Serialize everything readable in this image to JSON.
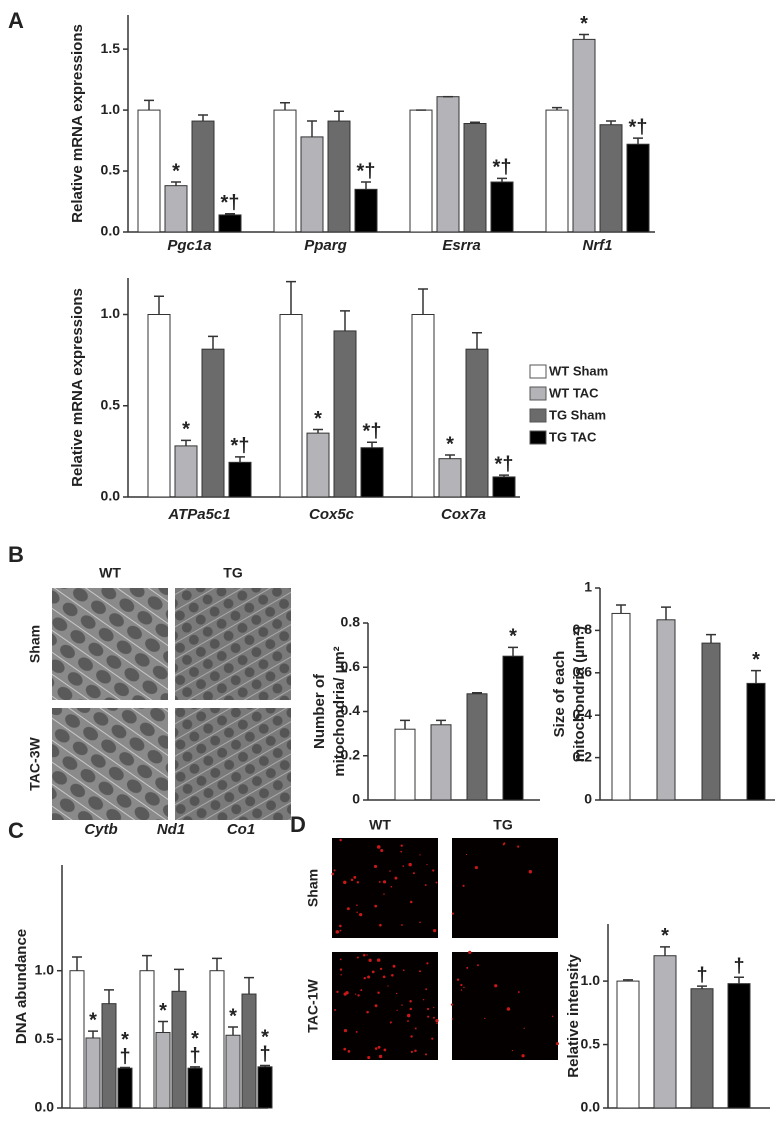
{
  "panels": [
    "A",
    "B",
    "C",
    "D"
  ],
  "legend": [
    {
      "name": "WT Sham",
      "color": "#ffffff"
    },
    {
      "name": "WT TAC",
      "color": "#b4b4b8"
    },
    {
      "name": "TG Sham",
      "color": "#6b6b6b"
    },
    {
      "name": "TG TAC",
      "color": "#000000"
    }
  ],
  "images": {
    "B": {
      "columns": [
        "WT",
        "TG"
      ],
      "rows": [
        "Sham",
        "TAC-3W"
      ]
    },
    "D": {
      "columns": [
        "WT",
        "TG"
      ],
      "rows": [
        "Sham",
        "TAC-1W"
      ]
    }
  },
  "chart_data": [
    {
      "type": "bar",
      "y_label": [
        "Relative mRNA expressions"
      ],
      "categories": [
        "Pgc1a",
        "Pparg",
        "Esrra",
        "Nrf1"
      ],
      "ylim": [
        0,
        1.78
      ],
      "yticks": [
        {
          "value": 0,
          "label": "0.0"
        },
        0.5,
        {
          "value": 1,
          "label": "1.0"
        },
        1.5
      ],
      "series": [
        {
          "values": [
            1.0,
            1.0,
            1.0,
            1.0
          ],
          "errors": [
            0.08,
            0.06,
            0,
            0.02
          ],
          "annotations": [
            null,
            null,
            null,
            null
          ]
        },
        {
          "values": [
            0.38,
            0.78,
            1.11,
            1.58
          ],
          "errors": [
            0.03,
            0.13,
            0,
            0.04
          ],
          "annotations": [
            "*",
            null,
            null,
            "*"
          ]
        },
        {
          "values": [
            0.91,
            0.91,
            0.89,
            0.88
          ],
          "errors": [
            0.05,
            0.08,
            0.01,
            0.03
          ],
          "annotations": [
            null,
            null,
            null,
            null
          ]
        },
        {
          "values": [
            0.14,
            0.35,
            0.41,
            0.72
          ],
          "errors": [
            0.01,
            0.06,
            0.03,
            0.05
          ],
          "annotations": [
            "*†",
            "*†",
            "*†",
            "*†"
          ]
        }
      ]
    },
    {
      "type": "bar",
      "y_label": [
        "Relative mRNA expressions"
      ],
      "categories": [
        "ATPa5c1",
        "Cox5c",
        "Cox7a"
      ],
      "ylim": [
        0,
        1.2
      ],
      "yticks": [
        {
          "value": 0,
          "label": "0.0"
        },
        0.5,
        {
          "value": 1,
          "label": "1.0"
        }
      ],
      "series": [
        {
          "values": [
            1.0,
            1.0,
            1.0
          ],
          "errors": [
            0.1,
            0.18,
            0.14
          ],
          "annotations": [
            null,
            null,
            null
          ]
        },
        {
          "values": [
            0.28,
            0.35,
            0.21
          ],
          "errors": [
            0.03,
            0.02,
            0.02
          ],
          "annotations": [
            "*",
            "*",
            "*"
          ]
        },
        {
          "values": [
            0.81,
            0.91,
            0.81
          ],
          "errors": [
            0.07,
            0.11,
            0.09
          ],
          "annotations": [
            null,
            null,
            null
          ]
        },
        {
          "values": [
            0.19,
            0.27,
            0.11
          ],
          "errors": [
            0.03,
            0.03,
            0.01
          ],
          "annotations": [
            "*†",
            "*†",
            "*†"
          ]
        }
      ]
    },
    {
      "type": "bar",
      "y_label": [
        "Number of",
        "mitochondria/ µm²"
      ],
      "ylim": [
        0,
        0.8
      ],
      "yticks": [
        0,
        0.2,
        0.4,
        0.6,
        0.8
      ],
      "values": [
        0.32,
        0.34,
        0.48,
        0.65
      ],
      "errors": [
        0.04,
        0.02,
        0.005,
        0.04
      ],
      "annotations": [
        null,
        null,
        null,
        "*"
      ]
    },
    {
      "type": "bar",
      "y_label": [
        "Size of each",
        "mitochondria (µm²)"
      ],
      "ylim": [
        0,
        1
      ],
      "yticks": [
        0,
        0.2,
        0.4,
        0.6,
        0.8,
        1
      ],
      "values": [
        0.88,
        0.85,
        0.74,
        0.55
      ],
      "errors": [
        0.04,
        0.06,
        0.04,
        0.06
      ],
      "annotations": [
        null,
        null,
        null,
        "*"
      ]
    },
    {
      "type": "bar",
      "y_label": [
        "DNA abundance"
      ],
      "categories": [
        "Cytb",
        "Nd1",
        "Co1"
      ],
      "ylim": [
        0,
        1.77
      ],
      "yticks": [
        {
          "value": 0,
          "label": "0.0"
        },
        0.5,
        {
          "value": 1,
          "label": "1.0"
        }
      ],
      "series": [
        {
          "values": [
            1.0,
            1.0,
            1.0
          ],
          "errors": [
            0.1,
            0.11,
            0.09
          ],
          "annotations": [
            null,
            null,
            null
          ]
        },
        {
          "values": [
            0.51,
            0.55,
            0.53
          ],
          "errors": [
            0.05,
            0.08,
            0.06
          ],
          "annotations": [
            [
              "*"
            ],
            [
              "*"
            ],
            [
              "*"
            ]
          ]
        },
        {
          "values": [
            0.76,
            0.85,
            0.83
          ],
          "errors": [
            0.1,
            0.16,
            0.12
          ],
          "annotations": [
            null,
            null,
            null
          ]
        },
        {
          "values": [
            0.29,
            0.29,
            0.3
          ],
          "errors": [
            0.005,
            0.01,
            0.01
          ],
          "annotations": [
            [
              "*",
              "†"
            ],
            [
              "*",
              "†"
            ],
            [
              "*",
              "†"
            ]
          ]
        }
      ]
    },
    {
      "type": "bar",
      "y_label": [
        "Relative intensity"
      ],
      "ylim": [
        0,
        1.45
      ],
      "yticks": [
        {
          "value": 0,
          "label": "0.0"
        },
        0.5,
        {
          "value": 1,
          "label": "1.0"
        }
      ],
      "values": [
        1.0,
        1.2,
        0.94,
        0.98
      ],
      "errors": [
        0.01,
        0.07,
        0.02,
        0.05
      ],
      "annotations": [
        null,
        "*",
        "†",
        "†"
      ]
    }
  ]
}
